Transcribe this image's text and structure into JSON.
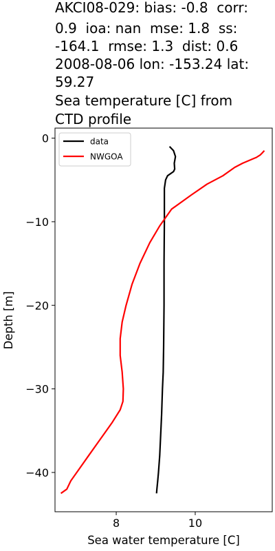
{
  "chart_data": {
    "type": "line",
    "title_lines": [
      "AKCI08-029: bias: -0.8  corr:",
      "0.9  ioa: nan  mse: 1.8  ss:",
      "-164.1  rmse: 1.3  dist: 0.6",
      "2008-08-06 lon: -153.24 lat:",
      "59.27",
      "Sea temperature [C] from",
      "CTD profile"
    ],
    "xlabel": "Sea water temperature [C]",
    "ylabel": "Depth [m]",
    "xlim": [
      6.45,
      11.95
    ],
    "ylim": [
      -44.7,
      1.2
    ],
    "xticks": [
      8,
      10
    ],
    "xtick_labels": [
      "8",
      "10"
    ],
    "yticks": [
      0,
      -10,
      -20,
      -30,
      -40
    ],
    "ytick_labels": [
      "0",
      "−10",
      "−20",
      "−30",
      "−40"
    ],
    "legend_position": "upper-left",
    "colors": {
      "data": "#000000",
      "NWGOA": "#ff0000"
    },
    "series": [
      {
        "name": "data",
        "x": [
          9.35,
          9.45,
          9.5,
          9.47,
          9.48,
          9.45,
          9.3,
          9.25,
          9.22,
          9.22,
          9.22,
          9.21,
          9.21,
          9.2,
          9.19,
          9.17,
          9.15,
          9.13,
          9.1,
          9.07,
          9.05,
          9.03,
          9.02
        ],
        "y": [
          -1.0,
          -1.5,
          -2.2,
          -3.0,
          -3.7,
          -4.0,
          -4.5,
          -5.0,
          -6.0,
          -7.0,
          -10.0,
          -15.0,
          -20.0,
          -25.0,
          -28.0,
          -30.0,
          -33.0,
          -35.0,
          -38.0,
          -40.0,
          -41.0,
          -42.0,
          -42.5
        ]
      },
      {
        "name": "NWGOA",
        "x": [
          11.75,
          11.65,
          11.55,
          11.45,
          11.2,
          11.0,
          10.7,
          10.3,
          9.9,
          9.4,
          9.1,
          8.85,
          8.6,
          8.4,
          8.25,
          8.15,
          8.1,
          8.1,
          8.15,
          8.18,
          8.17,
          8.1,
          7.9,
          7.6,
          7.3,
          7.0,
          6.85,
          6.75,
          6.6
        ],
        "y": [
          -1.5,
          -2.0,
          -2.3,
          -2.5,
          -3.0,
          -3.5,
          -4.5,
          -5.5,
          -6.8,
          -8.5,
          -10.5,
          -12.5,
          -15.0,
          -17.5,
          -20.0,
          -22.0,
          -24.0,
          -26.0,
          -28.0,
          -30.0,
          -31.5,
          -32.5,
          -34.0,
          -36.0,
          -38.0,
          -40.0,
          -41.0,
          -42.0,
          -42.5
        ]
      }
    ]
  }
}
